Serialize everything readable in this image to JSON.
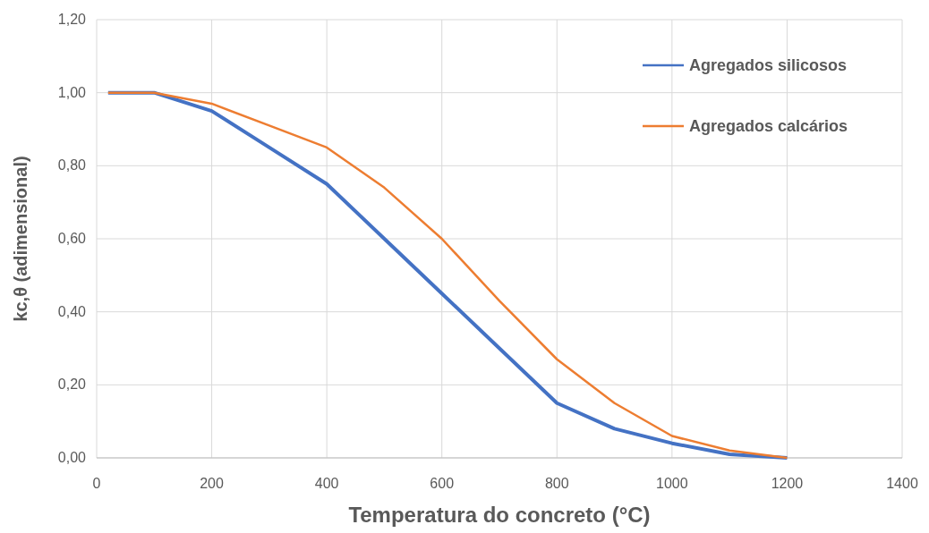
{
  "chart_data": {
    "type": "line",
    "xlabel": "Temperatura do concreto (°C)",
    "ylabel": "kc,θ (adimensional)",
    "xlim": [
      0,
      1400
    ],
    "xticks": [
      0,
      200,
      400,
      600,
      800,
      1000,
      1200,
      1400
    ],
    "ylim": [
      0,
      1.2
    ],
    "yticks": [
      {
        "value": 0,
        "label": "0,00"
      },
      {
        "value": 0.2,
        "label": "0,20"
      },
      {
        "value": 0.4,
        "label": "0,40"
      },
      {
        "value": 0.6,
        "label": "0,60"
      },
      {
        "value": 0.8,
        "label": "0,80"
      },
      {
        "value": 1,
        "label": "1,00"
      },
      {
        "value": 1.2,
        "label": "1,20"
      }
    ],
    "x": [
      20,
      100,
      200,
      300,
      400,
      500,
      600,
      700,
      800,
      900,
      1000,
      1100,
      1200
    ],
    "series": [
      {
        "name": "Agregados silicosos",
        "color": "#4472c4",
        "values": [
          1,
          1,
          0.95,
          0.85,
          0.75,
          0.6,
          0.45,
          0.3,
          0.15,
          0.08,
          0.04,
          0.01,
          0
        ]
      },
      {
        "name": "Agregados calcários",
        "color": "#ed7d31",
        "values": [
          1,
          1,
          0.97,
          0.91,
          0.85,
          0.74,
          0.6,
          0.43,
          0.27,
          0.15,
          0.06,
          0.02,
          0
        ]
      }
    ],
    "grid": true,
    "legend": "top right",
    "marker": "none",
    "line_style": "solid"
  }
}
